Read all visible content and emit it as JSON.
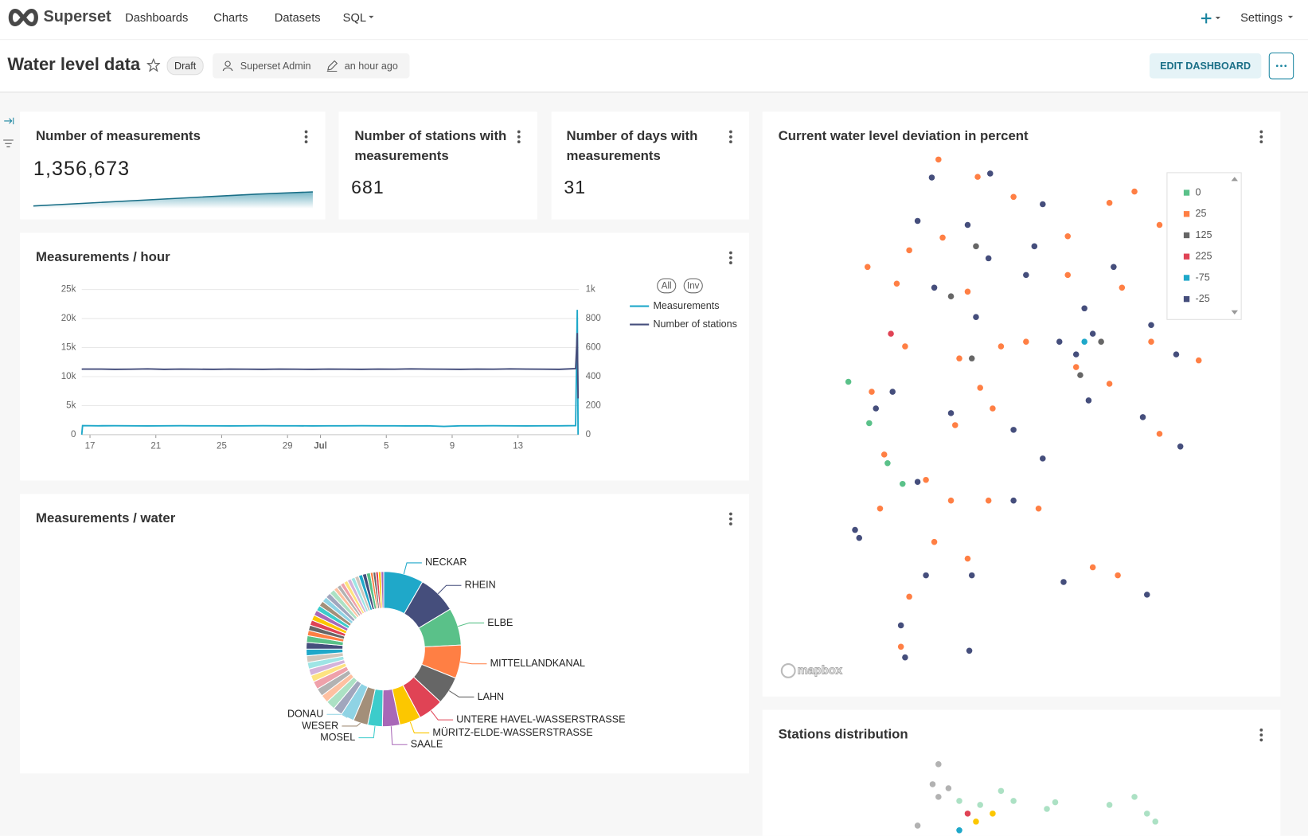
{
  "nav": {
    "brand": "Superset",
    "items": [
      "Dashboards",
      "Charts",
      "Datasets",
      "SQL"
    ],
    "settings": "Settings"
  },
  "header": {
    "title": "Water level data",
    "status": "Draft",
    "owner": "Superset Admin",
    "modified": "an hour ago",
    "edit_button": "EDIT DASHBOARD"
  },
  "big_numbers": [
    {
      "title": "Number of measurements",
      "value": 1356673,
      "value_label": "1,356,673",
      "trendline": [
        7000,
        15000,
        23000,
        31000,
        39000,
        45000
      ]
    },
    {
      "title": "Number of stations with measurements",
      "value": 681
    },
    {
      "title": "Number of days with measurements",
      "value": 31
    }
  ],
  "chart_data": [
    {
      "type": "line",
      "title": "Measurements / hour",
      "grid": true,
      "x": [
        16.5,
        16.55,
        17.5,
        18.5,
        19.5,
        20.5,
        21.5,
        22.5,
        23.5,
        24.5,
        25.5,
        26.5,
        27.5,
        28.5,
        29.5,
        30.5,
        31.5,
        32.5,
        33.5,
        34.5,
        35.5,
        36.5,
        37.5,
        38.5,
        39.5,
        40.5,
        41.5,
        42.5,
        43.5,
        44.5,
        45.5,
        46.5,
        46.6,
        46.65
      ],
      "xlim": [
        16.5,
        46.7
      ],
      "xticks": [
        17,
        21,
        25,
        29,
        {
          "value": 31,
          "label": "Jul"
        },
        {
          "value": 35,
          "label": "5"
        },
        {
          "value": 39,
          "label": "9"
        },
        {
          "value": 43,
          "label": "13"
        }
      ],
      "ylim": [
        0,
        25000
      ],
      "yticks": [
        0,
        {
          "value": 5000,
          "label": "5k"
        },
        {
          "value": 10000,
          "label": "10k"
        },
        {
          "value": 15000,
          "label": "15k"
        },
        {
          "value": 20000,
          "label": "20k"
        },
        {
          "value": 25000,
          "label": "25k"
        }
      ],
      "y2lim": [
        0,
        1000
      ],
      "y2ticks": [
        0,
        200,
        400,
        600,
        800,
        {
          "value": 1000,
          "label": "1k"
        }
      ],
      "legend_controls": [
        "All",
        "Inv"
      ],
      "series": [
        {
          "name": "Measurements",
          "color": "#1FA8C9",
          "values": [
            0,
            1550,
            1530,
            1540,
            1520,
            1510,
            1530,
            1540,
            1520,
            1530,
            1510,
            1520,
            1540,
            1530,
            1520,
            1510,
            1530,
            1520,
            1540,
            1530,
            1520,
            1510,
            1530,
            1420,
            1520,
            1530,
            1540,
            1520,
            1510,
            1530,
            1520,
            1560,
            21500,
            0
          ]
        },
        {
          "name": "Number of stations",
          "color": "#454E7C",
          "axis": "y2",
          "values": [
            450,
            452,
            452,
            450,
            451,
            453,
            450,
            452,
            451,
            450,
            452,
            451,
            450,
            452,
            451,
            450,
            452,
            451,
            450,
            452,
            451,
            453,
            452,
            451,
            450,
            452,
            451,
            453,
            452,
            451,
            450,
            455,
            700,
            250
          ]
        }
      ]
    },
    {
      "type": "pie",
      "title": "Measurements / water",
      "donut": true,
      "colors": [
        "#1FA8C9",
        "#454E7C",
        "#5AC189",
        "#FF7F44",
        "#666666",
        "#E04355",
        "#FCC700",
        "#A868B7",
        "#3CCCCB",
        "#A38F79",
        "#8FD3E4",
        "#A1A6BD",
        "#ACE1C4",
        "#FEC0A1",
        "#B2B2B2",
        "#EFA1AA",
        "#FDE380",
        "#D3B3DA",
        "#9EE5E5",
        "#D1C6BC"
      ],
      "categories": [
        "NECKAR",
        "RHEIN",
        "ELBE",
        "MITTELLANDKANAL",
        "LAHN",
        "UNTERE HAVEL-WASSERSTRASSE",
        "MÜRITZ-ELDE-WASSERSTRASSE",
        "SAALE",
        "MOSEL",
        "WESER",
        "DONAU",
        null,
        null,
        null,
        null,
        null,
        null,
        null,
        null,
        null,
        null,
        null,
        null,
        null,
        null,
        null,
        null,
        null,
        null,
        null,
        null,
        null,
        null,
        null,
        null,
        null,
        null,
        null,
        null,
        null,
        null,
        null,
        null,
        null,
        null,
        null,
        null,
        null
      ],
      "values": [
        30,
        29,
        28,
        25,
        21,
        19,
        16,
        13,
        11,
        11,
        10,
        7,
        7,
        6,
        6,
        6,
        5,
        5,
        5,
        5,
        5,
        5,
        5,
        4,
        4,
        4,
        4,
        4,
        4,
        4,
        4,
        4,
        4,
        3,
        3,
        3,
        3,
        3,
        3,
        3,
        3,
        3,
        3,
        2,
        2,
        2,
        2,
        2
      ]
    },
    {
      "type": "map",
      "title": "Current water level deviation in percent",
      "attribution": "mapbox",
      "series": [
        {
          "name": "0",
          "color": "#5AC189",
          "lon": [
            6.34,
            6.84,
            7.28,
            7.64
          ],
          "lat": [
            51.53,
            50.91,
            50.31,
            50.0
          ]
        },
        {
          "name": "25",
          "color": "#FF7F44",
          "lon": [
            8.5,
            9.44,
            10.3,
            11.6,
            12.6,
            13.2,
            13.8,
            6.8,
            7.5,
            7.8,
            8.6,
            9.2,
            10.0,
            11.6,
            12.9,
            13.6,
            14.74,
            7.7,
            9.0,
            9.5,
            9.8,
            8.9,
            11.8,
            12.6,
            13.8,
            7.2,
            8.2,
            8.8,
            7.1,
            9.7,
            10.9,
            8.4,
            9.2,
            7.8,
            7.6,
            12.8,
            12.2,
            6.9,
            10.6
          ],
          "lat": [
            54.86,
            54.6,
            54.3,
            53.71,
            54.21,
            54.38,
            53.88,
            53.25,
            53.0,
            53.5,
            53.69,
            52.88,
            52.06,
            53.13,
            52.94,
            52.13,
            51.85,
            52.06,
            51.88,
            51.44,
            51.13,
            50.88,
            51.75,
            51.5,
            50.75,
            50.44,
            50.06,
            49.75,
            49.63,
            49.75,
            49.63,
            49.13,
            48.88,
            48.31,
            47.56,
            48.63,
            48.75,
            51.38,
            52.13
          ]
        },
        {
          "name": "125",
          "color": "#666666",
          "lon": [
            8.8,
            9.4,
            11.9,
            9.3,
            12.4
          ],
          "lat": [
            52.81,
            53.56,
            51.63,
            51.88,
            52.13
          ]
        },
        {
          "name": "225",
          "color": "#E04355",
          "lon": [
            7.36
          ],
          "lat": [
            52.25
          ]
        },
        {
          "name": "-75",
          "color": "#1FA8C9",
          "lon": [
            12.0
          ],
          "lat": [
            52.13
          ]
        },
        {
          "name": "-25",
          "color": "#454E7C",
          "lon": [
            8.34,
            9.74,
            11.0,
            8.0,
            9.2,
            9.7,
            10.6,
            8.4,
            9.4,
            12.0,
            12.2,
            11.8,
            14.2,
            13.6,
            10.8,
            11.4,
            7.0,
            7.4,
            8.8,
            10.3,
            11.0,
            12.1,
            13.4,
            14.3,
            8.0,
            6.5,
            6.6,
            10.3,
            9.3,
            8.2,
            7.6,
            7.7,
            9.24,
            11.5,
            13.5,
            12.7
          ],
          "lat": [
            54.59,
            54.65,
            54.19,
            53.94,
            53.88,
            53.38,
            53.13,
            52.94,
            52.5,
            52.63,
            52.25,
            51.94,
            51.94,
            52.38,
            53.56,
            52.13,
            51.13,
            51.38,
            51.06,
            50.81,
            50.38,
            51.25,
            51.0,
            50.56,
            50.03,
            49.31,
            49.19,
            49.75,
            48.63,
            48.63,
            47.88,
            47.4,
            47.5,
            48.53,
            48.34,
            53.25
          ]
        }
      ]
    },
    {
      "type": "map",
      "title": "Stations distribution",
      "lon": [
        8.5,
        8.36,
        8.74,
        8.5,
        9.0,
        9.2,
        9.5,
        9.8,
        10.0,
        10.3,
        11.1,
        11.3,
        12.6,
        13.2,
        13.5,
        13.7,
        9.4,
        9.0,
        8.0
      ],
      "lat": [
        54.8,
        54.5,
        54.44,
        54.31,
        54.25,
        54.06,
        54.19,
        54.06,
        54.4,
        54.25,
        54.13,
        54.23,
        54.19,
        54.31,
        54.06,
        53.94,
        53.94,
        53.81,
        53.88
      ],
      "colors": [
        "#B2B2B2",
        "#B2B2B2",
        "#B2B2B2",
        "#B2B2B2",
        "#ACE1C4",
        "#E04355",
        "#ACE1C4",
        "#FCC700",
        "#ACE1C4",
        "#ACE1C4",
        "#ACE1C4",
        "#ACE1C4",
        "#ACE1C4",
        "#ACE1C4",
        "#ACE1C4",
        "#ACE1C4",
        "#FCC700",
        "#1FA8C9",
        "#B2B2B2"
      ]
    }
  ]
}
